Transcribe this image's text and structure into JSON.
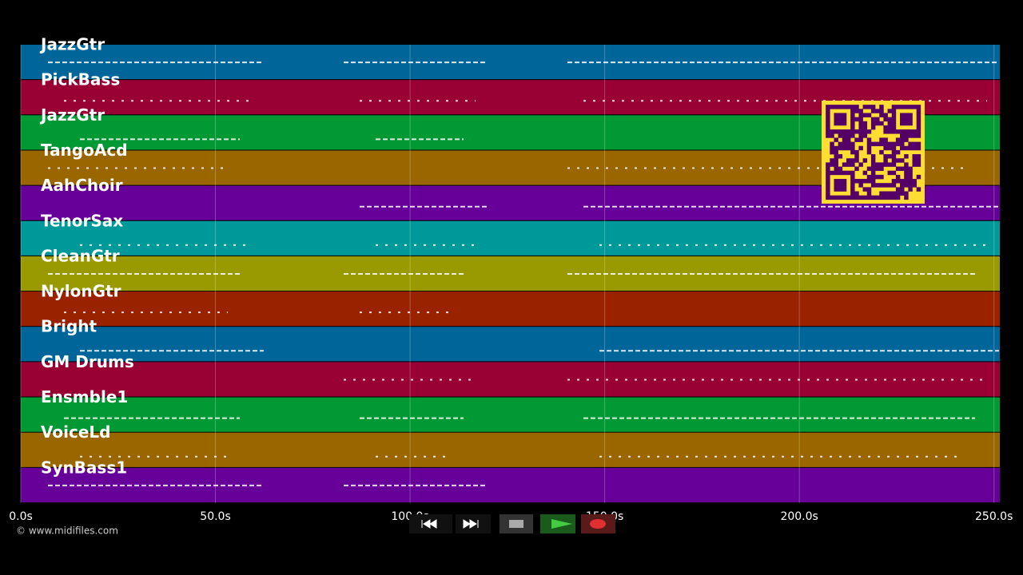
{
  "tracks": [
    {
      "name": "JazzGtr",
      "color": "#00669a"
    },
    {
      "name": "PickBass",
      "color": "#990033"
    },
    {
      "name": "JazzGtr",
      "color": "#009933"
    },
    {
      "name": "TangoAcd",
      "color": "#996600"
    },
    {
      "name": "AahChoir",
      "color": "#660099"
    },
    {
      "name": "TenorSax",
      "color": "#009999"
    },
    {
      "name": "CleanGtr",
      "color": "#999900"
    },
    {
      "name": "NylonGtr",
      "color": "#992200"
    },
    {
      "name": "Bright",
      "color": "#00669a"
    },
    {
      "name": "GM Drums",
      "color": "#990033"
    },
    {
      "name": "Ensmble1",
      "color": "#009933"
    },
    {
      "name": "VoiceLd",
      "color": "#996600"
    },
    {
      "name": "SynBass1",
      "color": "#660099"
    }
  ],
  "timeline": {
    "xlim": [
      0,
      251.5
    ],
    "xticks": [
      {
        "value": 0,
        "label": "0.0s"
      },
      {
        "value": 50,
        "label": "50.0s"
      },
      {
        "value": 100,
        "label": "100.0s"
      },
      {
        "value": 150,
        "label": "150.0s"
      },
      {
        "value": 200,
        "label": "200.0s"
      },
      {
        "value": 250,
        "label": "250.0s"
      }
    ]
  },
  "watermark": "© www.midifiles.com"
}
